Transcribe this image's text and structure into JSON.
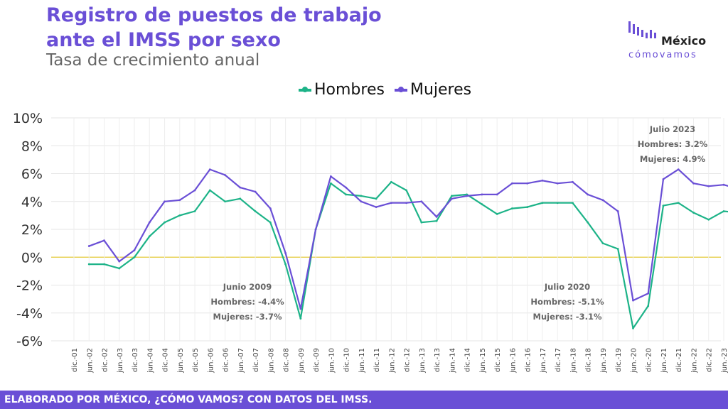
{
  "header": {
    "title_line1": "Registro de puestos de trabajo",
    "title_line2": "ante el IMSS por sexo",
    "subtitle": "Tasa de crecimiento anual"
  },
  "logo": {
    "name": "México",
    "tagline": "cómovamos"
  },
  "footer": {
    "text": "ELABORADO POR MÉXICO, ¿CÓMO VAMOS? CON DATOS DEL IMSS."
  },
  "colors": {
    "hombres": "#1db388",
    "mujeres": "#6a4fd6",
    "accent": "#6a4fd6",
    "zero_line": "#e8d35a"
  },
  "chart_data": {
    "type": "line",
    "xlabel": "",
    "ylabel": "",
    "ylim": [
      -6,
      10
    ],
    "yticks": [
      "-6%",
      "-4%",
      "-2%",
      "0%",
      "2%",
      "4%",
      "6%",
      "8%",
      "10%"
    ],
    "grid": true,
    "legend_placement": "top-center",
    "x_tick_labels": [
      "dic.-01",
      "jun.-02",
      "dic.-02",
      "jun.-03",
      "dic.-03",
      "jun.-04",
      "dic.-04",
      "jun.-05",
      "dic.-05",
      "jun.-06",
      "dic.-06",
      "jun.-07",
      "dic.-07",
      "jun.-08",
      "dic.-08",
      "jun.-09",
      "dic.-09",
      "jun.-10",
      "dic.-10",
      "jun.-11",
      "dic.-11",
      "jun.-12",
      "dic.-12",
      "jun.-13",
      "dic.-13",
      "jun.-14",
      "dic.-14",
      "jun.-15",
      "dic.-15",
      "jun.-16",
      "dic.-16",
      "jun.-17",
      "dic.-17",
      "jun.-18",
      "dic.-18",
      "jun.-19",
      "dic.-19",
      "jun.-20",
      "dic.-20",
      "jun.-21",
      "dic.-21",
      "jun.-22",
      "dic.-22",
      "jun.-23"
    ],
    "x_series_points": [
      "dic.-01",
      "jun.-02",
      "dic.-02",
      "jun.-03",
      "dic.-03",
      "jun.-04",
      "dic.-04",
      "jun.-05",
      "dic.-05",
      "jun.-06",
      "dic.-06",
      "jun.-07",
      "dic.-07",
      "jun.-08",
      "dic.-08",
      "jun.-09",
      "dic.-09",
      "jun.-10",
      "dic.-10",
      "jun.-11",
      "dic.-11",
      "jun.-12",
      "dic.-12",
      "jun.-13",
      "dic.-13",
      "jun.-14",
      "dic.-14",
      "jun.-15",
      "dic.-15",
      "jun.-16",
      "dic.-16",
      "jun.-17",
      "dic.-17",
      "jun.-18",
      "dic.-18",
      "jun.-19",
      "dic.-19",
      "jun.-20",
      "dic.-20",
      "jun.-21",
      "dic.-21",
      "jun.-22",
      "dic.-22",
      "jun.-23",
      "jul.-23"
    ],
    "series": [
      {
        "name": "Hombres",
        "color": "#1db388",
        "values": [
          null,
          -0.5,
          -0.5,
          -0.8,
          0.0,
          1.5,
          2.5,
          3.0,
          3.3,
          4.8,
          4.0,
          4.2,
          3.3,
          2.5,
          -0.5,
          -4.4,
          2.0,
          5.3,
          4.5,
          4.4,
          4.2,
          5.4,
          4.8,
          2.5,
          2.6,
          4.4,
          4.5,
          3.8,
          3.1,
          3.5,
          3.6,
          3.9,
          3.9,
          3.9,
          2.5,
          1.0,
          0.6,
          -5.1,
          -3.5,
          3.7,
          3.9,
          3.2,
          2.7,
          3.3,
          3.2
        ]
      },
      {
        "name": "Mujeres",
        "color": "#6a4fd6",
        "values": [
          null,
          0.8,
          1.2,
          -0.3,
          0.5,
          2.5,
          4.0,
          4.1,
          4.8,
          6.3,
          5.9,
          5.0,
          4.7,
          3.5,
          0.3,
          -3.7,
          2.0,
          5.8,
          5.0,
          4.0,
          3.6,
          3.9,
          3.9,
          4.0,
          2.9,
          4.2,
          4.4,
          4.5,
          4.5,
          5.3,
          5.3,
          5.5,
          5.3,
          5.4,
          4.5,
          4.1,
          3.3,
          -3.1,
          -2.6,
          5.6,
          6.3,
          5.3,
          5.1,
          5.2,
          4.9
        ]
      }
    ],
    "annotations": [
      {
        "lines": [
          "Junio 2009",
          "Hombres: -4.4%",
          "Mujeres: -3.7%"
        ]
      },
      {
        "lines": [
          "Julio 2020",
          "Hombres: -5.1%",
          "Mujeres: -3.1%"
        ]
      },
      {
        "lines": [
          "Julio 2023",
          "Hombres: 3.2%",
          "Mujeres: 4.9%"
        ]
      }
    ]
  }
}
